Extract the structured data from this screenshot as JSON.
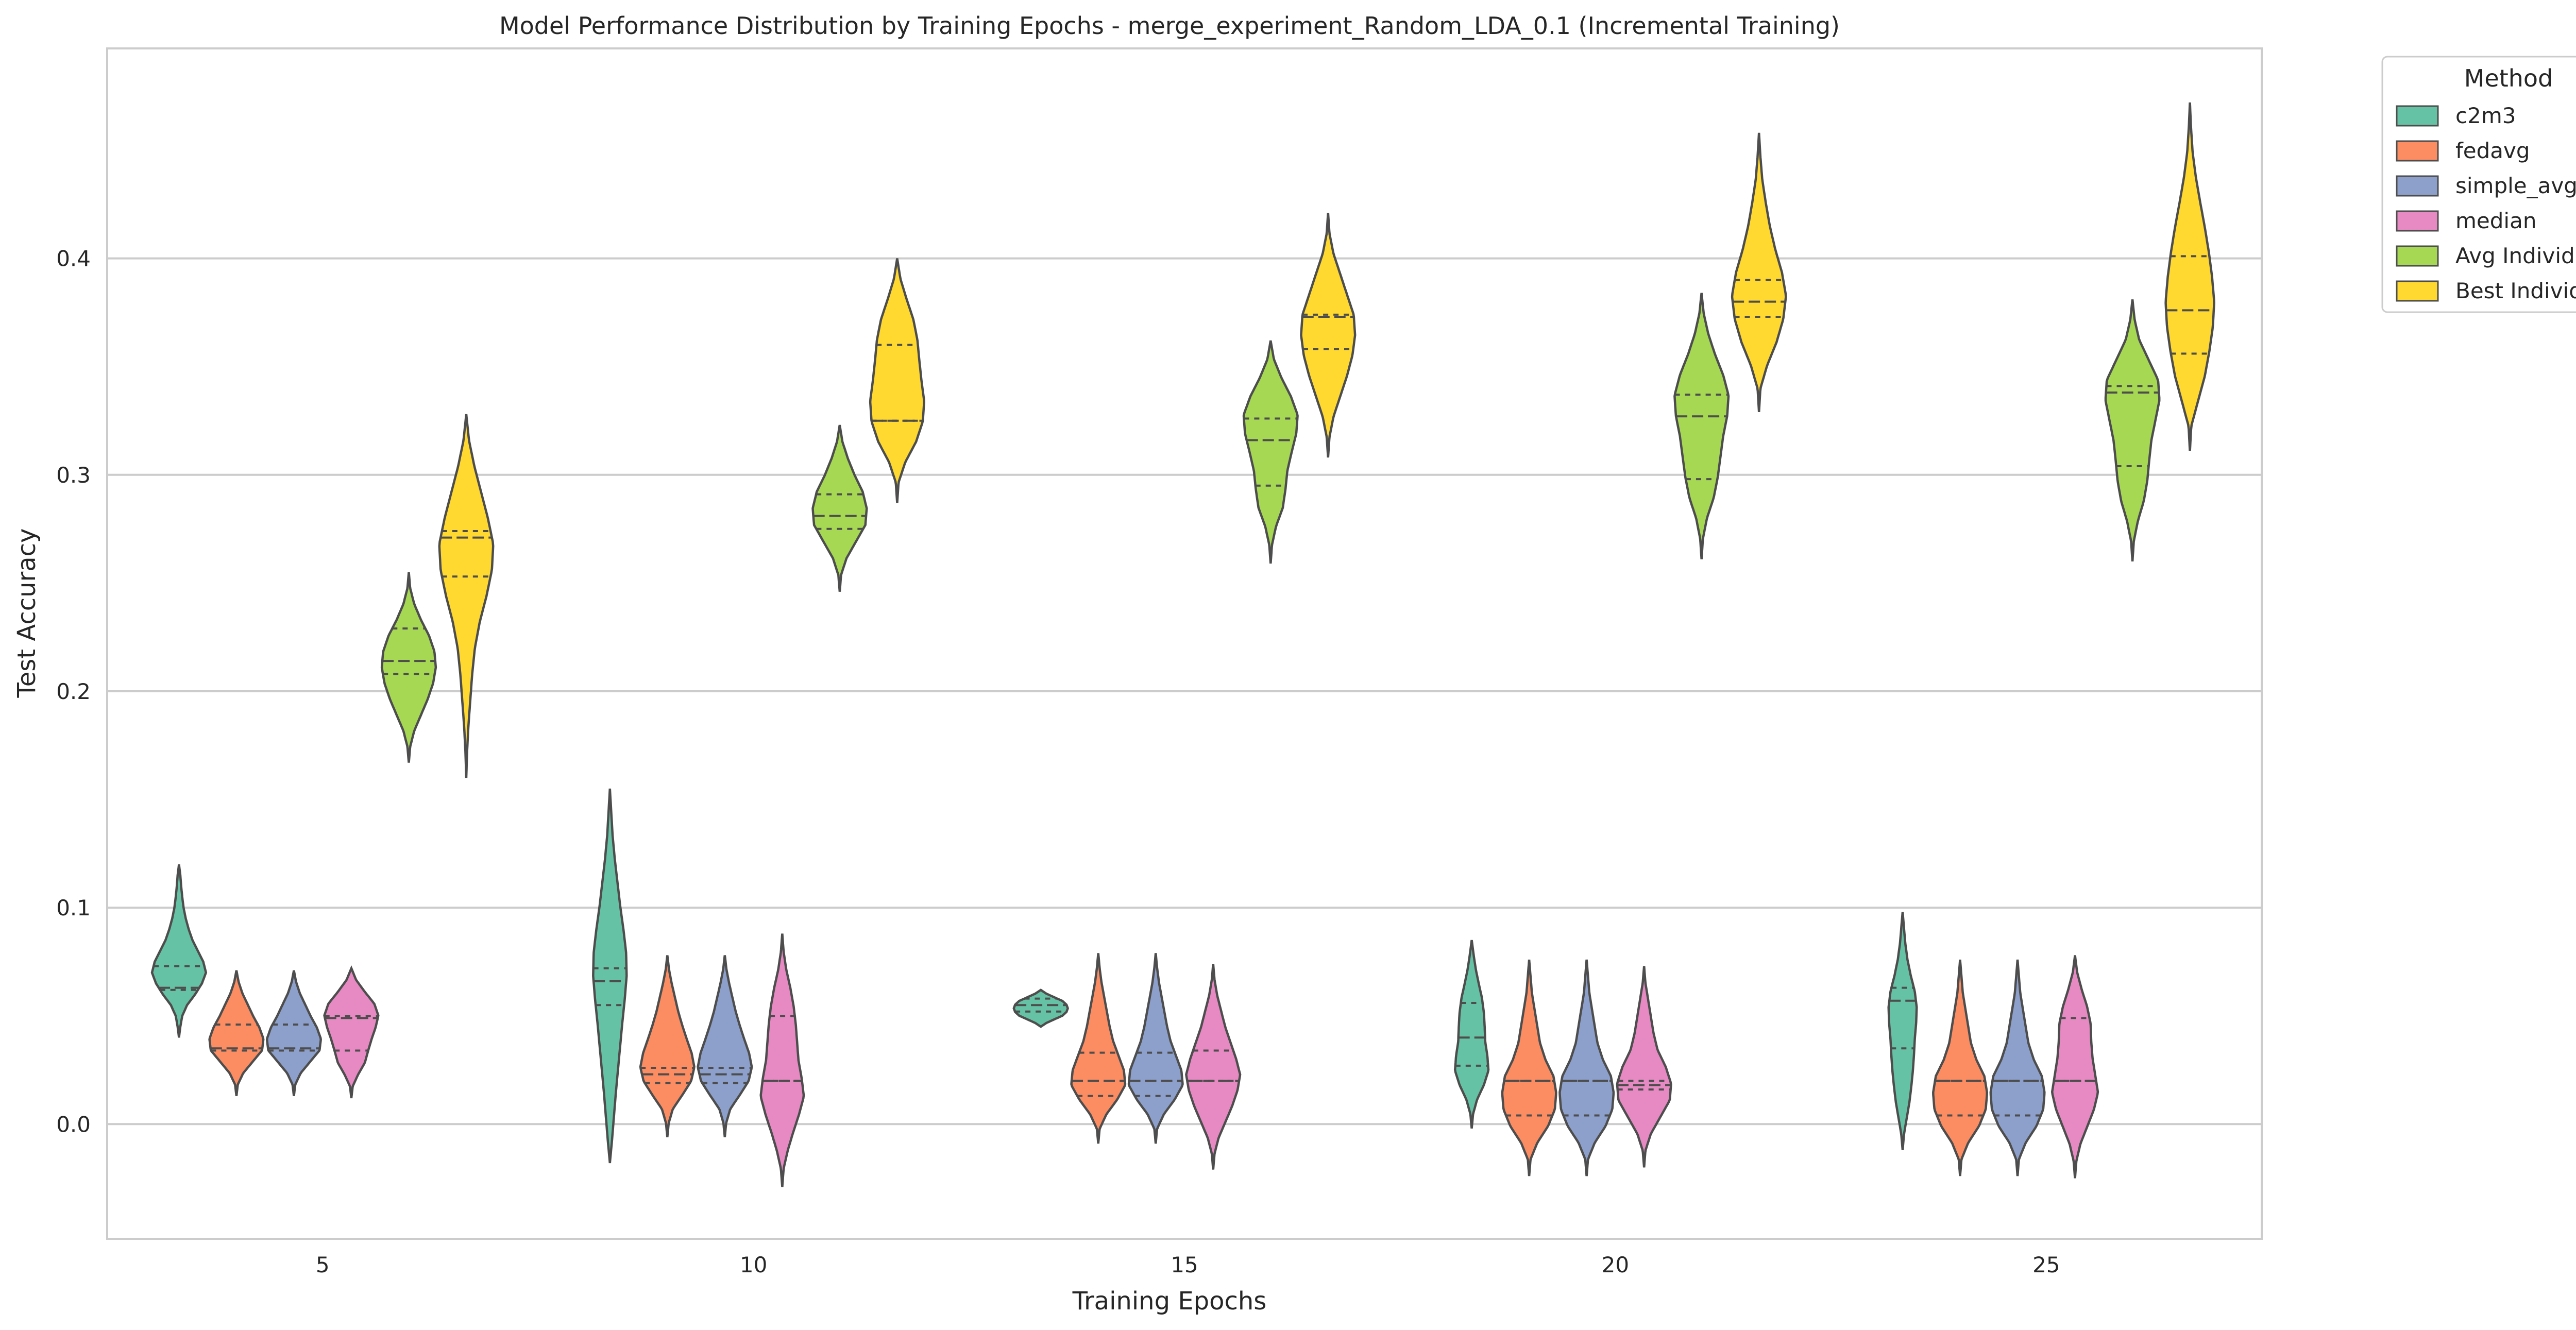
{
  "colors": {
    "c2m3": "#66c2a5",
    "fedavg": "#fc8d62",
    "simple_avg": "#8da0cb",
    "median": "#e78ac3",
    "Avg Individual": "#a6d854",
    "Best Individual": "#ffd92f",
    "outline": "#4d4d4d",
    "grid": "#cccccc",
    "frame": "#cccccc"
  },
  "chart_data": {
    "type": "violin",
    "title": "Model Performance Distribution by Training Epochs - merge_experiment_Random_LDA_0.1 (Incremental Training)",
    "xlabel": "Training Epochs",
    "ylabel": "Test Accuracy",
    "categories": [
      "5",
      "10",
      "15",
      "20",
      "25"
    ],
    "yticks": [
      "0.0",
      "0.1",
      "0.2",
      "0.3",
      "0.4"
    ],
    "ylim": [
      -0.053,
      0.497
    ],
    "grid": true,
    "legend": {
      "title": "Method",
      "position": "outside-top-right",
      "entries": [
        "c2m3",
        "fedavg",
        "simple_avg",
        "median",
        "Avg Individual",
        "Best Individual"
      ]
    },
    "series": [
      {
        "name": "c2m3",
        "violins": [
          {
            "lo": 0.04,
            "hi": 0.12,
            "q1": 0.062,
            "median": 0.063,
            "q3": 0.073,
            "profile": [
              0.05,
              0.12,
              0.3,
              0.6,
              0.85,
              1.0,
              0.9,
              0.7,
              0.5,
              0.36,
              0.25,
              0.17,
              0.12,
              0.08,
              0.05
            ]
          },
          {
            "lo": -0.018,
            "hi": 0.155,
            "q1": 0.055,
            "median": 0.066,
            "q3": 0.072,
            "profile": [
              0.08,
              0.15,
              0.22,
              0.3,
              0.38,
              0.46,
              0.55,
              0.62,
              0.6,
              0.5,
              0.38,
              0.28,
              0.18,
              0.1,
              0.05
            ]
          },
          {
            "lo": 0.045,
            "hi": 0.062,
            "q1": 0.052,
            "median": 0.055,
            "q3": 0.058,
            "profile": [
              0.2,
              0.5,
              0.8,
              0.95,
              1.0,
              0.95,
              0.8,
              0.5,
              0.2
            ]
          },
          {
            "lo": -0.002,
            "hi": 0.085,
            "q1": 0.027,
            "median": 0.04,
            "q3": 0.056,
            "profile": [
              0.05,
              0.2,
              0.45,
              0.62,
              0.58,
              0.5,
              0.48,
              0.45,
              0.38,
              0.26,
              0.15,
              0.07
            ]
          },
          {
            "lo": -0.012,
            "hi": 0.098,
            "q1": 0.035,
            "median": 0.057,
            "q3": 0.063,
            "profile": [
              0.05,
              0.15,
              0.25,
              0.32,
              0.38,
              0.42,
              0.45,
              0.5,
              0.52,
              0.45,
              0.3,
              0.18,
              0.1,
              0.05
            ]
          }
        ]
      },
      {
        "name": "fedavg",
        "violins": [
          {
            "lo": 0.013,
            "hi": 0.071,
            "q1": 0.034,
            "median": 0.035,
            "q3": 0.046,
            "profile": [
              0.05,
              0.25,
              0.6,
              0.95,
              1.0,
              0.85,
              0.62,
              0.42,
              0.22,
              0.08
            ]
          },
          {
            "lo": -0.006,
            "hi": 0.078,
            "q1": 0.019,
            "median": 0.023,
            "q3": 0.026,
            "profile": [
              0.05,
              0.2,
              0.55,
              0.88,
              1.0,
              0.9,
              0.72,
              0.55,
              0.4,
              0.28,
              0.16,
              0.06
            ]
          },
          {
            "lo": -0.009,
            "hi": 0.079,
            "q1": 0.013,
            "median": 0.02,
            "q3": 0.033,
            "profile": [
              0.05,
              0.3,
              0.7,
              1.0,
              0.95,
              0.75,
              0.55,
              0.42,
              0.32,
              0.22,
              0.12,
              0.05
            ]
          },
          {
            "lo": -0.024,
            "hi": 0.076,
            "q1": 0.004,
            "median": 0.02,
            "q3": 0.02,
            "profile": [
              0.05,
              0.3,
              0.7,
              0.95,
              1.0,
              0.9,
              0.6,
              0.4,
              0.3,
              0.2,
              0.1,
              0.05
            ]
          },
          {
            "lo": -0.024,
            "hi": 0.076,
            "q1": 0.004,
            "median": 0.02,
            "q3": 0.02,
            "profile": [
              0.05,
              0.3,
              0.7,
              0.95,
              1.0,
              0.9,
              0.6,
              0.4,
              0.3,
              0.2,
              0.1,
              0.05
            ]
          }
        ]
      },
      {
        "name": "simple_avg",
        "violins": [
          {
            "lo": 0.013,
            "hi": 0.071,
            "q1": 0.034,
            "median": 0.035,
            "q3": 0.046,
            "profile": [
              0.05,
              0.25,
              0.6,
              0.95,
              1.0,
              0.85,
              0.62,
              0.42,
              0.22,
              0.08
            ]
          },
          {
            "lo": -0.006,
            "hi": 0.078,
            "q1": 0.019,
            "median": 0.023,
            "q3": 0.026,
            "profile": [
              0.05,
              0.2,
              0.55,
              0.88,
              1.0,
              0.9,
              0.72,
              0.55,
              0.4,
              0.28,
              0.16,
              0.06
            ]
          },
          {
            "lo": -0.009,
            "hi": 0.079,
            "q1": 0.013,
            "median": 0.02,
            "q3": 0.033,
            "profile": [
              0.05,
              0.3,
              0.7,
              1.0,
              0.95,
              0.75,
              0.55,
              0.42,
              0.32,
              0.22,
              0.12,
              0.05
            ]
          },
          {
            "lo": -0.024,
            "hi": 0.076,
            "q1": 0.004,
            "median": 0.02,
            "q3": 0.02,
            "profile": [
              0.05,
              0.3,
              0.7,
              0.95,
              1.0,
              0.9,
              0.6,
              0.4,
              0.3,
              0.2,
              0.1,
              0.05
            ]
          },
          {
            "lo": -0.024,
            "hi": 0.076,
            "q1": 0.004,
            "median": 0.02,
            "q3": 0.02,
            "profile": [
              0.05,
              0.3,
              0.7,
              0.95,
              1.0,
              0.9,
              0.6,
              0.4,
              0.3,
              0.2,
              0.1,
              0.05
            ]
          }
        ]
      },
      {
        "name": "median",
        "violins": [
          {
            "lo": 0.012,
            "hi": 0.072,
            "q1": 0.034,
            "median": 0.049,
            "q3": 0.05,
            "profile": [
              0.05,
              0.25,
              0.5,
              0.62,
              0.75,
              0.9,
              1.0,
              0.85,
              0.5,
              0.18
            ]
          },
          {
            "lo": -0.029,
            "hi": 0.088,
            "q1": 0.02,
            "median": 0.02,
            "q3": 0.05,
            "profile": [
              0.05,
              0.2,
              0.4,
              0.62,
              0.8,
              0.72,
              0.6,
              0.55,
              0.5,
              0.42,
              0.3,
              0.15,
              0.05
            ]
          },
          {
            "lo": -0.021,
            "hi": 0.074,
            "q1": 0.02,
            "median": 0.02,
            "q3": 0.034,
            "profile": [
              0.05,
              0.2,
              0.45,
              0.7,
              0.9,
              1.0,
              0.85,
              0.65,
              0.45,
              0.3,
              0.15,
              0.05
            ]
          },
          {
            "lo": -0.02,
            "hi": 0.073,
            "q1": 0.016,
            "median": 0.018,
            "q3": 0.02,
            "profile": [
              0.05,
              0.25,
              0.6,
              0.95,
              1.0,
              0.8,
              0.5,
              0.35,
              0.25,
              0.15,
              0.05
            ]
          },
          {
            "lo": -0.025,
            "hi": 0.078,
            "q1": 0.02,
            "median": 0.02,
            "q3": 0.049,
            "profile": [
              0.05,
              0.2,
              0.45,
              0.7,
              0.85,
              0.75,
              0.65,
              0.6,
              0.58,
              0.45,
              0.25,
              0.08
            ]
          }
        ]
      },
      {
        "name": "Avg Individual",
        "violins": [
          {
            "lo": 0.167,
            "hi": 0.255,
            "q1": 0.208,
            "median": 0.214,
            "q3": 0.229,
            "profile": [
              0.05,
              0.2,
              0.45,
              0.7,
              0.9,
              1.0,
              0.95,
              0.75,
              0.45,
              0.2,
              0.05
            ]
          },
          {
            "lo": 0.246,
            "hi": 0.323,
            "q1": 0.275,
            "median": 0.281,
            "q3": 0.291,
            "profile": [
              0.05,
              0.25,
              0.6,
              0.95,
              1.0,
              0.85,
              0.55,
              0.3,
              0.1
            ]
          },
          {
            "lo": 0.259,
            "hi": 0.362,
            "q1": 0.295,
            "median": 0.316,
            "q3": 0.326,
            "profile": [
              0.05,
              0.2,
              0.45,
              0.55,
              0.62,
              0.78,
              0.95,
              1.0,
              0.75,
              0.4,
              0.12
            ]
          },
          {
            "lo": 0.261,
            "hi": 0.384,
            "q1": 0.298,
            "median": 0.327,
            "q3": 0.337,
            "profile": [
              0.05,
              0.2,
              0.45,
              0.6,
              0.7,
              0.8,
              0.95,
              1.0,
              0.8,
              0.5,
              0.25,
              0.08
            ]
          },
          {
            "lo": 0.26,
            "hi": 0.381,
            "q1": 0.304,
            "median": 0.338,
            "q3": 0.341,
            "profile": [
              0.05,
              0.2,
              0.42,
              0.55,
              0.62,
              0.7,
              0.85,
              1.0,
              0.95,
              0.6,
              0.25,
              0.08
            ]
          }
        ]
      },
      {
        "name": "Best Individual",
        "violins": [
          {
            "lo": 0.16,
            "hi": 0.328,
            "q1": 0.253,
            "median": 0.271,
            "q3": 0.274,
            "profile": [
              0.03,
              0.08,
              0.15,
              0.22,
              0.32,
              0.5,
              0.75,
              0.95,
              1.0,
              0.8,
              0.55,
              0.3,
              0.1
            ]
          },
          {
            "lo": 0.287,
            "hi": 0.4,
            "q1": 0.325,
            "median": 0.325,
            "q3": 0.36,
            "profile": [
              0.05,
              0.3,
              0.7,
              0.95,
              1.0,
              0.9,
              0.82,
              0.75,
              0.6,
              0.35,
              0.12
            ]
          },
          {
            "lo": 0.308,
            "hi": 0.421,
            "q1": 0.358,
            "median": 0.373,
            "q3": 0.374,
            "profile": [
              0.05,
              0.2,
              0.45,
              0.7,
              0.9,
              1.0,
              0.95,
              0.7,
              0.45,
              0.2,
              0.05
            ]
          },
          {
            "lo": 0.329,
            "hi": 0.458,
            "q1": 0.373,
            "median": 0.38,
            "q3": 0.39,
            "profile": [
              0.05,
              0.3,
              0.65,
              0.9,
              1.0,
              0.85,
              0.6,
              0.4,
              0.25,
              0.12,
              0.05
            ]
          },
          {
            "lo": 0.311,
            "hi": 0.472,
            "q1": 0.356,
            "median": 0.376,
            "q3": 0.401,
            "profile": [
              0.05,
              0.3,
              0.55,
              0.72,
              0.85,
              0.9,
              0.82,
              0.7,
              0.55,
              0.38,
              0.22,
              0.1,
              0.04
            ]
          }
        ]
      }
    ]
  }
}
